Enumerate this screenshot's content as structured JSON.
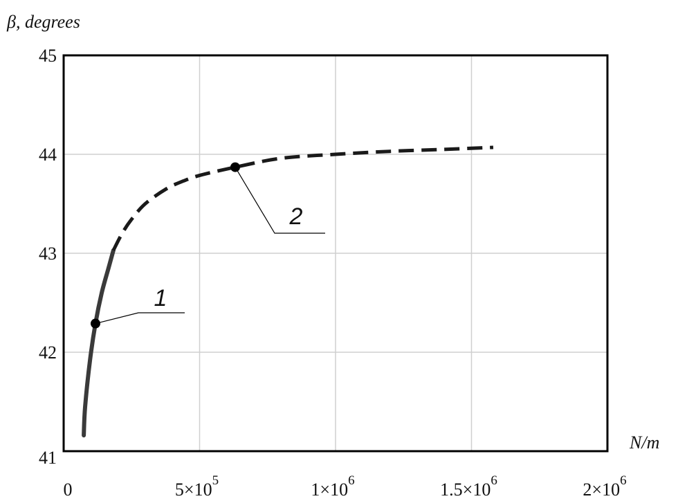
{
  "chart_data": {
    "type": "line",
    "title": "",
    "xlabel": "N/m",
    "ylabel": "β, degrees",
    "xlim": [
      0,
      2000000
    ],
    "ylim": [
      41,
      45
    ],
    "grid": true,
    "x_ticks": [
      {
        "value": 0,
        "mantissa": "0",
        "exponent": ""
      },
      {
        "value": 500000,
        "mantissa": "5×10",
        "exponent": "5"
      },
      {
        "value": 1000000,
        "mantissa": "1×10",
        "exponent": "6"
      },
      {
        "value": 1500000,
        "mantissa": "1.5×10",
        "exponent": "6"
      },
      {
        "value": 2000000,
        "mantissa": "2×10",
        "exponent": "6"
      }
    ],
    "y_ticks": [
      "41",
      "42",
      "43",
      "44",
      "45"
    ],
    "series": [
      {
        "line_style": "solid",
        "color": "#3a3a3a",
        "x": [
          74000,
          79000,
          97000,
          117000,
          140000,
          165000,
          183000
        ],
        "y": [
          41.16,
          41.45,
          41.92,
          42.29,
          42.6,
          42.85,
          43.03
        ]
      },
      {
        "line_style": "dashed",
        "color": "#1a1a1a",
        "x": [
          183000,
          215000,
          249000,
          300000,
          377000,
          440000,
          504000,
          631000,
          800000,
          1000000,
          1200000,
          1400000,
          1580000
        ],
        "y": [
          43.03,
          43.2,
          43.34,
          43.5,
          43.65,
          43.73,
          43.79,
          43.87,
          43.96,
          44.0,
          44.03,
          44.05,
          44.07
        ]
      }
    ],
    "annotations": [
      {
        "label": "1",
        "x": 117000,
        "y": 42.29
      },
      {
        "label": "2",
        "x": 631000,
        "y": 43.87
      }
    ]
  }
}
